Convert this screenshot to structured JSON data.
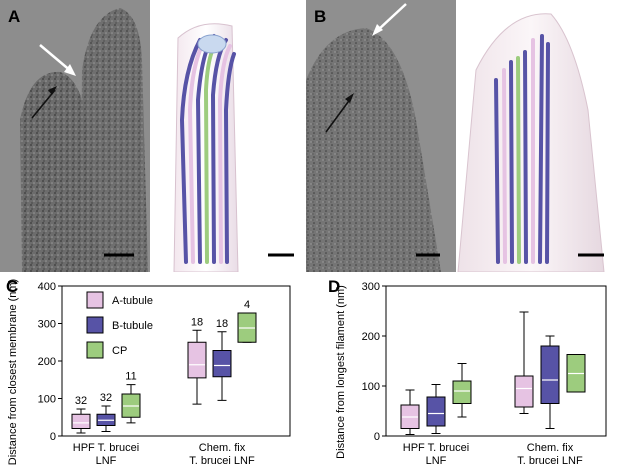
{
  "panels": {
    "A": {
      "label": "A"
    },
    "B": {
      "label": "B"
    },
    "C": {
      "label": "C"
    },
    "D": {
      "label": "D"
    }
  },
  "colors": {
    "a_tubule": "#e6c3e3",
    "b_tubule": "#5753a6",
    "cp": "#9dcc7e",
    "median": "#ffffff",
    "arrow_white": "#ffffff",
    "arrow_black": "#111111"
  },
  "chart_data": [
    {
      "type": "box",
      "panel": "C",
      "ylabel": "Distance from closest membrane (nm)",
      "ylim": [
        0,
        400
      ],
      "yticks": [
        0,
        100,
        200,
        300,
        400
      ],
      "legend": {
        "position": "top-left",
        "entries": [
          {
            "name": "A-tubule",
            "color": "#e6c3e3"
          },
          {
            "name": "B-tubule",
            "color": "#5753a6"
          },
          {
            "name": "CP",
            "color": "#9dcc7e"
          }
        ]
      },
      "groups": [
        {
          "label_lines": [
            "HPF T. brucei",
            "LNF"
          ],
          "boxes": [
            {
              "series": "A-tubule",
              "min": 8,
              "q1": 20,
              "median": 35,
              "q3": 58,
              "max": 72,
              "n": "32"
            },
            {
              "series": "B-tubule",
              "min": 12,
              "q1": 28,
              "median": 42,
              "q3": 58,
              "max": 80,
              "n": "32"
            },
            {
              "series": "CP",
              "min": 35,
              "q1": 50,
              "median": 80,
              "q3": 112,
              "max": 137,
              "n": "11"
            }
          ]
        },
        {
          "label_lines": [
            "Chem. fix",
            "T. brucei LNF"
          ],
          "boxes": [
            {
              "series": "A-tubule",
              "min": 85,
              "q1": 155,
              "median": 190,
              "q3": 250,
              "max": 282,
              "n": "18"
            },
            {
              "series": "B-tubule",
              "min": 95,
              "q1": 158,
              "median": 188,
              "q3": 228,
              "max": 278,
              "n": "18"
            },
            {
              "series": "CP",
              "min": 250,
              "q1": 250,
              "median": 288,
              "q3": 328,
              "max": 328,
              "n": "4"
            }
          ]
        }
      ]
    },
    {
      "type": "box",
      "panel": "D",
      "ylabel": "Distance from longest filament (nm)",
      "ylim": [
        0,
        300
      ],
      "yticks": [
        0,
        100,
        200,
        300
      ],
      "groups": [
        {
          "label_lines": [
            "HPF T. brucei",
            "LNF"
          ],
          "boxes": [
            {
              "series": "A-tubule",
              "min": 3,
              "q1": 15,
              "median": 38,
              "q3": 62,
              "max": 92
            },
            {
              "series": "B-tubule",
              "min": 5,
              "q1": 20,
              "median": 45,
              "q3": 78,
              "max": 103
            },
            {
              "series": "CP",
              "min": 38,
              "q1": 65,
              "median": 90,
              "q3": 110,
              "max": 145
            }
          ]
        },
        {
          "label_lines": [
            "Chem. fix",
            "T. brucei LNF"
          ],
          "boxes": [
            {
              "series": "A-tubule",
              "min": 45,
              "q1": 58,
              "median": 95,
              "q3": 120,
              "max": 248
            },
            {
              "series": "B-tubule",
              "min": 15,
              "q1": 65,
              "median": 112,
              "q3": 180,
              "max": 200
            },
            {
              "series": "CP",
              "min": 88,
              "q1": 88,
              "median": 125,
              "q3": 163,
              "max": 163
            }
          ]
        }
      ]
    }
  ]
}
